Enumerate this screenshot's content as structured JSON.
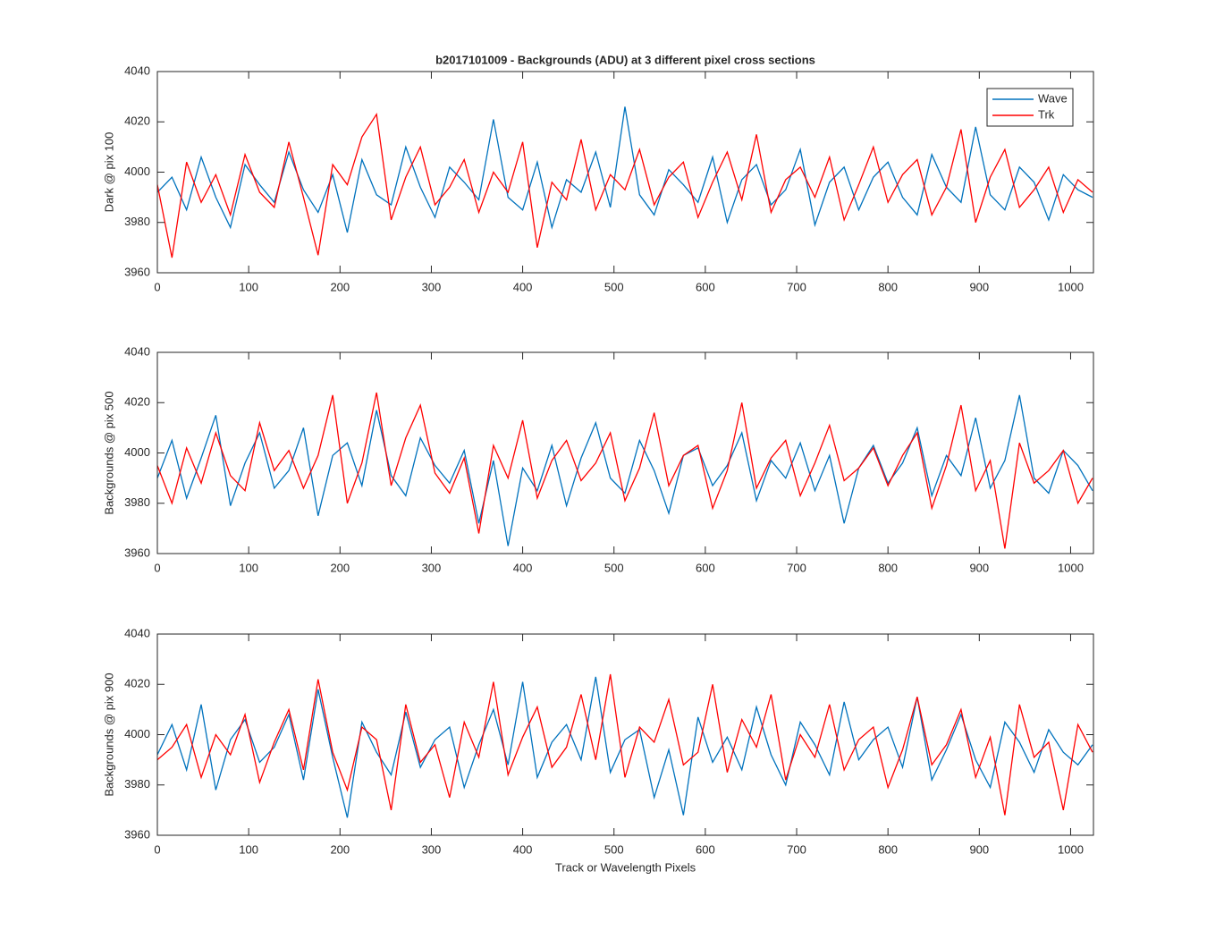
{
  "chart_data": [
    {
      "type": "line",
      "title": "b2017101009 - Backgrounds (ADU) at 3 different pixel cross sections",
      "ylabel": "Dark @ pix 100",
      "legend": "upper right",
      "x": [
        0,
        16,
        32,
        48,
        64,
        80,
        96,
        112,
        128,
        144,
        160,
        176,
        192,
        208,
        224,
        240,
        256,
        272,
        288,
        304,
        320,
        336,
        352,
        368,
        384,
        400,
        416,
        432,
        448,
        464,
        480,
        496,
        512,
        528,
        544,
        560,
        576,
        592,
        608,
        624,
        640,
        656,
        672,
        688,
        704,
        720,
        736,
        752,
        768,
        784,
        800,
        816,
        832,
        848,
        864,
        880,
        896,
        912,
        928,
        944,
        960,
        976,
        992,
        1008,
        1024
      ],
      "xlim": [
        0,
        1025
      ],
      "xticks": [
        0,
        100,
        200,
        300,
        400,
        500,
        600,
        700,
        800,
        900,
        1000
      ],
      "ylim": [
        3960,
        4040
      ],
      "yticks": [
        3960,
        3980,
        4000,
        4020,
        4040
      ],
      "series": [
        {
          "name": "Wave",
          "color": "#0072bd",
          "values": [
            3992,
            3998,
            3985,
            4006,
            3990,
            3978,
            4003,
            3995,
            3988,
            4008,
            3993,
            3984,
            3999,
            3976,
            4005,
            3991,
            3987,
            4010,
            3994,
            3982,
            4002,
            3996,
            3989,
            4021,
            3990,
            3985,
            4004,
            3978,
            3997,
            3992,
            4008,
            3986,
            4026,
            3991,
            3983,
            4001,
            3995,
            3988,
            4006,
            3980,
            3997,
            4003,
            3987,
            3993,
            4009,
            3979,
            3996,
            4002,
            3985,
            3998,
            4004,
            3990,
            3983,
            4007,
            3994,
            3988,
            4018,
            3991,
            3985,
            4002,
            3996,
            3981,
            3999,
            3993,
            3990
          ]
        },
        {
          "name": "Trk",
          "color": "#ff0000",
          "values": [
            3995,
            3966,
            4004,
            3988,
            3999,
            3983,
            4007,
            3992,
            3986,
            4012,
            3990,
            3967,
            4003,
            3995,
            4014,
            4023,
            3981,
            3998,
            4010,
            3987,
            3994,
            4005,
            3984,
            4000,
            3992,
            4012,
            3970,
            3996,
            3989,
            4013,
            3985,
            3999,
            3993,
            4009,
            3987,
            3998,
            4004,
            3982,
            3996,
            4008,
            3989,
            4015,
            3984,
            3997,
            4002,
            3990,
            4006,
            3981,
            3995,
            4010,
            3988,
            3999,
            4005,
            3983,
            3994,
            4017,
            3980,
            3998,
            4009,
            3986,
            3993,
            4002,
            3984,
            3997,
            3992
          ]
        }
      ]
    },
    {
      "type": "line",
      "ylabel": "Backgrounds @ pix 500",
      "x": [
        0,
        16,
        32,
        48,
        64,
        80,
        96,
        112,
        128,
        144,
        160,
        176,
        192,
        208,
        224,
        240,
        256,
        272,
        288,
        304,
        320,
        336,
        352,
        368,
        384,
        400,
        416,
        432,
        448,
        464,
        480,
        496,
        512,
        528,
        544,
        560,
        576,
        592,
        608,
        624,
        640,
        656,
        672,
        688,
        704,
        720,
        736,
        752,
        768,
        784,
        800,
        816,
        832,
        848,
        864,
        880,
        896,
        912,
        928,
        944,
        960,
        976,
        992,
        1008,
        1024
      ],
      "xlim": [
        0,
        1025
      ],
      "xticks": [
        0,
        100,
        200,
        300,
        400,
        500,
        600,
        700,
        800,
        900,
        1000
      ],
      "ylim": [
        3960,
        4040
      ],
      "yticks": [
        3960,
        3980,
        4000,
        4020,
        4040
      ],
      "series": [
        {
          "name": "Wave",
          "color": "#0072bd",
          "values": [
            3990,
            4005,
            3982,
            3998,
            4015,
            3979,
            3996,
            4008,
            3986,
            3993,
            4010,
            3975,
            3999,
            4004,
            3987,
            4017,
            3991,
            3983,
            4006,
            3995,
            3988,
            4001,
            3972,
            3997,
            3963,
            3994,
            3985,
            4003,
            3979,
            3998,
            4012,
            3990,
            3984,
            4005,
            3993,
            3976,
            3999,
            4002,
            3987,
            3995,
            4008,
            3981,
            3997,
            3990,
            4004,
            3985,
            3999,
            3972,
            3994,
            4003,
            3988,
            3996,
            4010,
            3983,
            3999,
            3991,
            4014,
            3986,
            3997,
            4023,
            3990,
            3984,
            4001,
            3995,
            3985
          ]
        },
        {
          "name": "Trk",
          "color": "#ff0000",
          "values": [
            3995,
            3980,
            4002,
            3988,
            4008,
            3991,
            3985,
            4012,
            3993,
            4001,
            3986,
            3999,
            4023,
            3980,
            3996,
            4024,
            3987,
            4006,
            4019,
            3992,
            3984,
            3998,
            3968,
            4003,
            3990,
            4013,
            3982,
            3997,
            4005,
            3989,
            3996,
            4008,
            3981,
            3994,
            4016,
            3987,
            3999,
            4003,
            3978,
            3993,
            4020,
            3986,
            3998,
            4005,
            3983,
            3996,
            4011,
            3989,
            3994,
            4002,
            3987,
            3999,
            4008,
            3978,
            3995,
            4019,
            3985,
            3997,
            3962,
            4004,
            3988,
            3993,
            4001,
            3980,
            3990
          ]
        }
      ]
    },
    {
      "type": "line",
      "ylabel": "Backgrounds @ pix 900",
      "xlabel": "Track or Wavelength Pixels",
      "x": [
        0,
        16,
        32,
        48,
        64,
        80,
        96,
        112,
        128,
        144,
        160,
        176,
        192,
        208,
        224,
        240,
        256,
        272,
        288,
        304,
        320,
        336,
        352,
        368,
        384,
        400,
        416,
        432,
        448,
        464,
        480,
        496,
        512,
        528,
        544,
        560,
        576,
        592,
        608,
        624,
        640,
        656,
        672,
        688,
        704,
        720,
        736,
        752,
        768,
        784,
        800,
        816,
        832,
        848,
        864,
        880,
        896,
        912,
        928,
        944,
        960,
        976,
        992,
        1008,
        1024
      ],
      "xlim": [
        0,
        1025
      ],
      "xticks": [
        0,
        100,
        200,
        300,
        400,
        500,
        600,
        700,
        800,
        900,
        1000
      ],
      "ylim": [
        3960,
        4040
      ],
      "yticks": [
        3960,
        3980,
        4000,
        4020,
        4040
      ],
      "series": [
        {
          "name": "Wave",
          "color": "#0072bd",
          "values": [
            3992,
            4004,
            3986,
            4012,
            3978,
            3998,
            4006,
            3989,
            3995,
            4008,
            3982,
            4018,
            3991,
            3967,
            4005,
            3993,
            3984,
            4009,
            3987,
            3998,
            4003,
            3979,
            3996,
            4010,
            3988,
            4021,
            3983,
            3997,
            4004,
            3990,
            4023,
            3985,
            3998,
            4002,
            3975,
            3994,
            3968,
            4007,
            3989,
            3999,
            3986,
            4011,
            3992,
            3980,
            4005,
            3996,
            3984,
            4013,
            3990,
            3998,
            4003,
            3987,
            4015,
            3982,
            3994,
            4008,
            3990,
            3979,
            4005,
            3997,
            3985,
            4002,
            3993,
            3988,
            3996
          ]
        },
        {
          "name": "Trk",
          "color": "#ff0000",
          "values": [
            3990,
            3995,
            4004,
            3983,
            4000,
            3992,
            4008,
            3981,
            3997,
            4010,
            3986,
            4022,
            3993,
            3978,
            4003,
            3998,
            3970,
            4012,
            3989,
            3996,
            3975,
            4005,
            3991,
            4021,
            3984,
            3999,
            4011,
            3987,
            3995,
            4016,
            3990,
            4024,
            3983,
            4003,
            3997,
            4014,
            3988,
            3993,
            4020,
            3985,
            4006,
            3995,
            4016,
            3982,
            4000,
            3991,
            4012,
            3986,
            3998,
            4003,
            3979,
            3994,
            4015,
            3988,
            3996,
            4010,
            3983,
            3999,
            3968,
            4012,
            3991,
            3997,
            3970,
            4004,
            3993
          ]
        }
      ]
    }
  ]
}
